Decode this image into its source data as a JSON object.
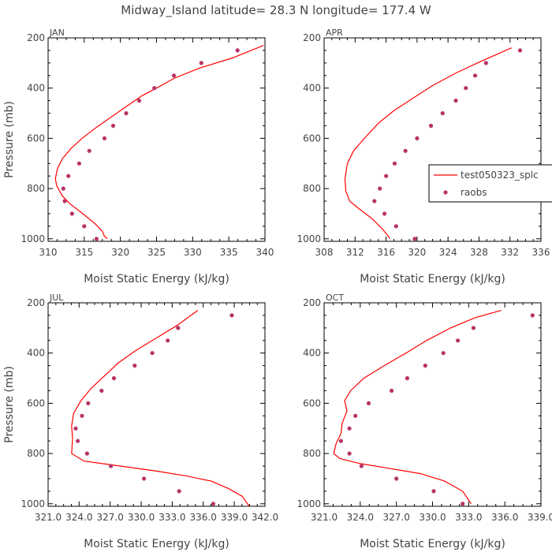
{
  "figure": {
    "title": "Midway_Island  latitude= 28.3 N longitude= 177.4 W",
    "line_color": "#ff0000",
    "point_color": "#b8336a"
  },
  "legend": {
    "line_label": "test050323_splc",
    "point_label": "raobs"
  },
  "chart_data": [
    {
      "type": "line",
      "panel": "JAN",
      "xlabel": "Moist Static Energy (kJ/kg)",
      "ylabel": "Pressure (mb)",
      "xlim": [
        310,
        340
      ],
      "ylim": [
        1010,
        200
      ],
      "x_ticks": [
        310,
        315,
        320,
        325,
        330,
        335,
        340
      ],
      "x_tick_labels": [
        "310",
        "315",
        "320",
        "325",
        "330",
        "335",
        "340"
      ],
      "y_ticks": [
        200,
        400,
        600,
        800,
        1000
      ],
      "y_tick_labels": [
        "200",
        "400",
        "600",
        "800",
        "1000"
      ],
      "series": [
        {
          "name": "test050323_splc",
          "style": "line",
          "x": [
            339.8,
            335.5,
            331,
            327.5,
            325,
            323,
            321,
            318.5,
            316.5,
            314.7,
            313.2,
            312,
            311.3,
            311,
            311.2,
            312,
            313,
            314.8,
            316.5,
            317.5,
            317.8,
            318.2
          ],
          "y": [
            230,
            280,
            320,
            360,
            400,
            430,
            470,
            520,
            560,
            600,
            640,
            680,
            720,
            760,
            790,
            830,
            860,
            900,
            940,
            970,
            990,
            1000
          ]
        },
        {
          "name": "raobs",
          "style": "points",
          "x": [
            336.2,
            331.2,
            327.4,
            324.7,
            322.6,
            320.8,
            319,
            317.8,
            315.7,
            314.3,
            312.8,
            312.1,
            312.3,
            313.3,
            315,
            316.7
          ],
          "y": [
            250,
            300,
            350,
            400,
            450,
            500,
            550,
            600,
            650,
            700,
            750,
            800,
            850,
            900,
            950,
            1000
          ]
        }
      ]
    },
    {
      "type": "line",
      "panel": "APR",
      "xlabel": "Moist Static Energy (kJ/kg)",
      "ylabel": "",
      "xlim": [
        308,
        336
      ],
      "ylim": [
        1010,
        200
      ],
      "x_ticks": [
        308,
        312,
        316,
        320,
        324,
        328,
        332,
        336
      ],
      "x_tick_labels": [
        "308",
        "312",
        "316",
        "320",
        "324",
        "328",
        "332",
        "336"
      ],
      "y_ticks": [
        200,
        400,
        600,
        800,
        1000
      ],
      "y_tick_labels": [
        "200",
        "400",
        "600",
        "800",
        "1000"
      ],
      "series": [
        {
          "name": "test050323_splc",
          "style": "line",
          "x": [
            332.2,
            328.5,
            325,
            322,
            319.5,
            317,
            315,
            313.2,
            311.8,
            311,
            310.7,
            310.8,
            311.3,
            312.5,
            314.2,
            315.5,
            316.3,
            316.5
          ],
          "y": [
            240,
            290,
            340,
            390,
            440,
            490,
            540,
            600,
            650,
            700,
            760,
            810,
            850,
            880,
            920,
            960,
            990,
            1000
          ]
        },
        {
          "name": "raobs",
          "style": "points",
          "x": [
            333.3,
            328.9,
            327.5,
            326.3,
            325,
            323.3,
            321.8,
            320,
            318.5,
            317.1,
            316,
            315.2,
            314.5,
            315.8,
            317.3,
            319.7
          ],
          "y": [
            250,
            300,
            350,
            400,
            450,
            500,
            550,
            600,
            650,
            700,
            750,
            800,
            850,
            900,
            950,
            1000
          ]
        }
      ]
    },
    {
      "type": "line",
      "panel": "JUL",
      "xlabel": "Moist Static Energy (kJ/kg)",
      "ylabel": "Pressure (mb)",
      "xlim": [
        321.03,
        342.0
      ],
      "ylim": [
        1010,
        200
      ],
      "x_ticks": [
        321.03,
        324.03,
        327.03,
        330.03,
        333.03,
        336.03,
        339.03,
        342.0
      ],
      "x_tick_labels": [
        "321.0",
        "324.0",
        "327.0",
        "330.0",
        "333.0",
        "336.0",
        "339.0",
        "342.0"
      ],
      "y_ticks": [
        200,
        400,
        600,
        800,
        1000
      ],
      "y_tick_labels": [
        "200",
        "400",
        "600",
        "800",
        "1000"
      ],
      "series": [
        {
          "name": "test050323_splc",
          "style": "line",
          "x": [
            335.5,
            333.5,
            331.5,
            329.5,
            327.8,
            326.5,
            325.2,
            324.2,
            323.5,
            323.3,
            323.4,
            323.3,
            324.5,
            328,
            331.5,
            334.5,
            336.8,
            338.5,
            339.8,
            340.3,
            340.5
          ],
          "y": [
            230,
            290,
            340,
            390,
            440,
            490,
            540,
            590,
            640,
            690,
            740,
            800,
            830,
            850,
            870,
            890,
            910,
            940,
            970,
            1000,
            1010
          ]
        },
        {
          "name": "raobs",
          "style": "points",
          "x": [
            338.8,
            333.6,
            332.6,
            331.1,
            329.4,
            327.4,
            326.2,
            324.9,
            324.3,
            323.7,
            323.9,
            324.8,
            327.1,
            330.3,
            333.7,
            337
          ],
          "y": [
            250,
            300,
            350,
            400,
            450,
            500,
            550,
            600,
            650,
            700,
            750,
            800,
            850,
            900,
            950,
            1000
          ]
        }
      ]
    },
    {
      "type": "line",
      "panel": "OCT",
      "xlabel": "Moist Static Energy (kJ/kg)",
      "ylabel": "",
      "xlim": [
        321.0,
        339.0
      ],
      "ylim": [
        1010,
        200
      ],
      "x_ticks": [
        321,
        324,
        327,
        330,
        333,
        336,
        339
      ],
      "x_tick_labels": [
        "321.0",
        "324.0",
        "327.0",
        "330.0",
        "333.0",
        "336.0",
        "339.0"
      ],
      "y_ticks": [
        200,
        400,
        600,
        800,
        1000
      ],
      "y_tick_labels": [
        "200",
        "400",
        "600",
        "800",
        "1000"
      ],
      "series": [
        {
          "name": "test050323_splc",
          "style": "line",
          "x": [
            335.7,
            333.5,
            331.5,
            329.5,
            327.8,
            326,
            324.3,
            323.2,
            322.7,
            322.9,
            322.5,
            322.4,
            322,
            321.8,
            322.3,
            324,
            326.5,
            329,
            331,
            332.5,
            333.2
          ],
          "y": [
            230,
            260,
            300,
            350,
            400,
            450,
            500,
            550,
            590,
            630,
            680,
            720,
            760,
            800,
            820,
            840,
            860,
            880,
            910,
            950,
            1000
          ]
        },
        {
          "name": "raobs",
          "style": "points",
          "x": [
            338.3,
            333.4,
            332.1,
            330.9,
            329.4,
            327.9,
            326.6,
            324.7,
            323.6,
            323.1,
            322.4,
            323.1,
            324.1,
            327,
            330.1,
            332.5
          ],
          "y": [
            250,
            300,
            350,
            400,
            450,
            500,
            550,
            600,
            650,
            700,
            750,
            800,
            850,
            900,
            950,
            1000
          ]
        }
      ]
    }
  ]
}
